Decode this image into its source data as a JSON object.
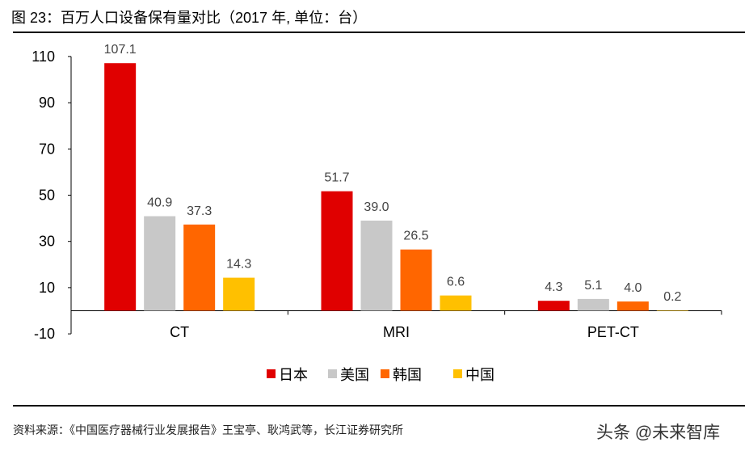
{
  "title": "图 23：百万人口设备保有量对比（2017 年, 单位：台）",
  "source": "资料来源：《中国医疗器械行业发展报告》王宝亭、耿鸿武等，长江证券研究所",
  "watermark": "头条 @未来智库",
  "chart_data": {
    "type": "bar",
    "title": "",
    "xlabel": "",
    "ylabel": "",
    "categories": [
      "CT",
      "MRI",
      "PET-CT"
    ],
    "ylim": [
      -10,
      110
    ],
    "yticks": [
      -10,
      10,
      30,
      50,
      70,
      90,
      110
    ],
    "grid": false,
    "legend_position": "bottom",
    "data_labels": true,
    "series": [
      {
        "name": "日本",
        "color": "#E00000",
        "values": [
          107.1,
          51.7,
          4.3
        ],
        "labels": [
          "107.1",
          "51.7",
          "4.3"
        ]
      },
      {
        "name": "美国",
        "color": "#C8C8C8",
        "values": [
          40.9,
          39.0,
          5.1
        ],
        "labels": [
          "40.9",
          "39.0",
          "5.1"
        ]
      },
      {
        "name": "韩国",
        "color": "#FF6600",
        "values": [
          37.3,
          26.5,
          4.0
        ],
        "labels": [
          "37.3",
          "26.5",
          "4.0"
        ]
      },
      {
        "name": "中国",
        "color": "#FFC000",
        "values": [
          14.3,
          6.6,
          0.2
        ],
        "labels": [
          "14.3",
          "6.6",
          "0.2"
        ]
      }
    ]
  }
}
